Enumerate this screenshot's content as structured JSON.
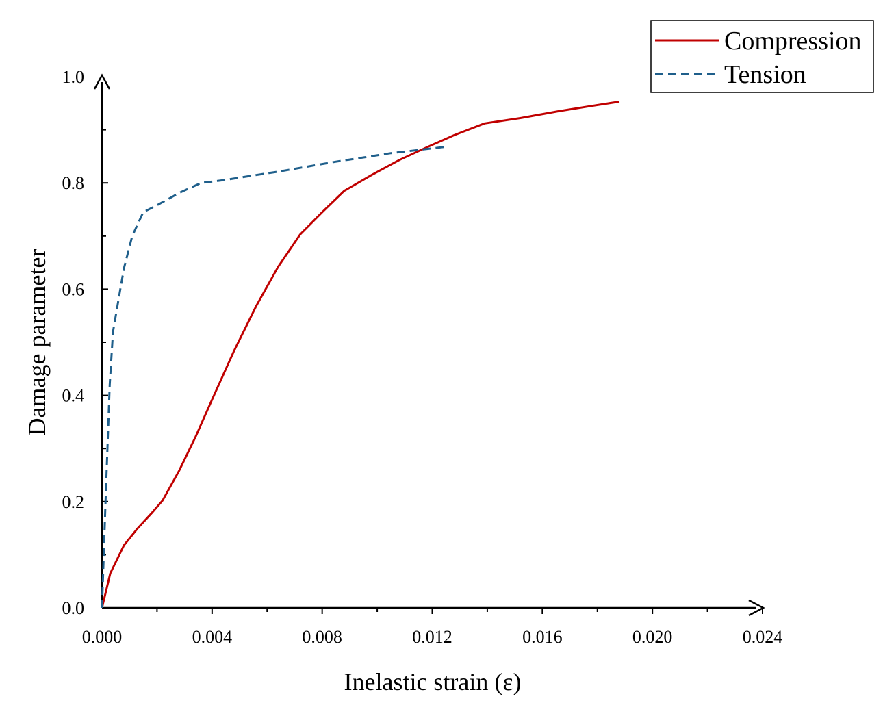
{
  "chart_data": {
    "type": "line",
    "title": "",
    "xlabel": "Inelastic strain (ε)",
    "ylabel": "Damage parameter",
    "xlim": [
      0,
      0.024
    ],
    "ylim": [
      0,
      1.0
    ],
    "xticks": [
      "0.000",
      "0.004",
      "0.008",
      "0.012",
      "0.016",
      "0.020",
      "0.024"
    ],
    "yticks": [
      "0.0",
      "0.2",
      "0.4",
      "0.6",
      "0.8",
      "1.0"
    ],
    "x_tick_values": [
      0,
      0.004,
      0.008,
      0.012,
      0.016,
      0.02,
      0.024
    ],
    "y_tick_values": [
      0,
      0.2,
      0.4,
      0.6,
      0.8,
      1.0
    ],
    "grid": false,
    "legend_position": "top-right",
    "series": [
      {
        "name": "Compression",
        "color": "#c00000",
        "style": "solid",
        "x": [
          0,
          0.0003,
          0.0008,
          0.0013,
          0.0018,
          0.0022,
          0.0028,
          0.0034,
          0.004,
          0.0048,
          0.0056,
          0.0064,
          0.0072,
          0.008,
          0.0088,
          0.0098,
          0.0108,
          0.0118,
          0.0128,
          0.0139,
          0.0152,
          0.0166,
          0.0178,
          0.0188
        ],
        "y": [
          0,
          0.065,
          0.118,
          0.15,
          0.178,
          0.202,
          0.258,
          0.322,
          0.392,
          0.484,
          0.568,
          0.642,
          0.703,
          0.745,
          0.785,
          0.815,
          0.843,
          0.867,
          0.89,
          0.912,
          0.922,
          0.935,
          0.945,
          0.953
        ]
      },
      {
        "name": "Tension",
        "color": "#1f5f8b",
        "style": "dashed",
        "x": [
          0,
          0.00013,
          0.00028,
          0.0004,
          0.0006,
          0.0008,
          0.0011,
          0.0015,
          0.002,
          0.0028,
          0.0036,
          0.0044,
          0.0055,
          0.0065,
          0.0075,
          0.0085,
          0.0095,
          0.0105,
          0.0115,
          0.0125
        ],
        "y": [
          0,
          0.2,
          0.42,
          0.52,
          0.58,
          0.64,
          0.7,
          0.745,
          0.758,
          0.781,
          0.8,
          0.805,
          0.814,
          0.822,
          0.831,
          0.84,
          0.848,
          0.856,
          0.862,
          0.868
        ]
      }
    ]
  }
}
